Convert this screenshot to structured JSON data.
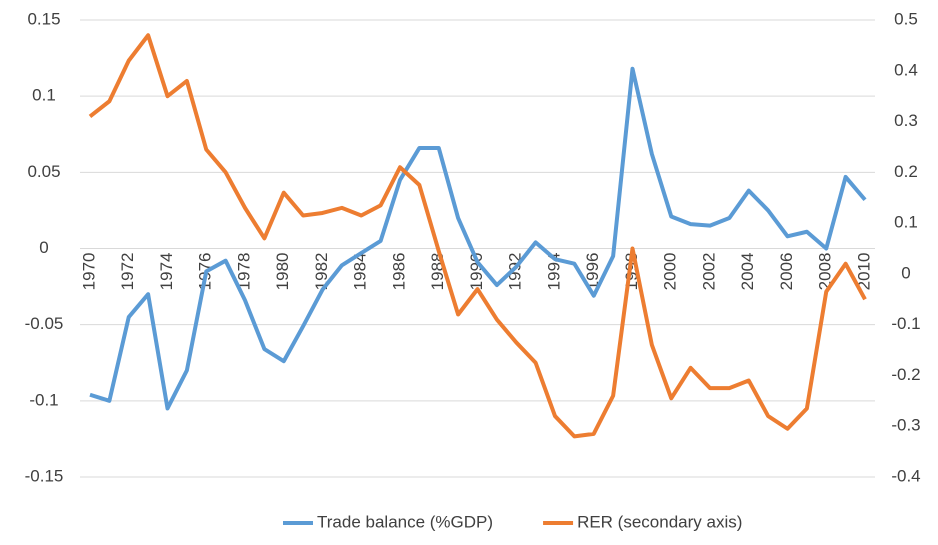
{
  "chart_data": {
    "type": "line",
    "categories": [
      "1970",
      null,
      "1972",
      null,
      "1974",
      null,
      "1976",
      null,
      "1978",
      null,
      "1980",
      null,
      "1982",
      null,
      "1984",
      null,
      "1986",
      null,
      "1988",
      null,
      "1990",
      null,
      "1992",
      null,
      "1994",
      null,
      "1996",
      null,
      "1998",
      null,
      "2000",
      null,
      "2002",
      null,
      "2004",
      null,
      "2006",
      null,
      "2008",
      null,
      "2010"
    ],
    "series": [
      {
        "name": "Trade balance (%GDP)",
        "color": "#5b9bd5",
        "values": [
          -0.096,
          -0.1,
          -0.045,
          -0.03,
          -0.105,
          -0.08,
          -0.015,
          -0.008,
          -0.034,
          -0.066,
          -0.074,
          -0.051,
          -0.027,
          -0.011,
          -0.003,
          0.005,
          0.045,
          0.066,
          0.066,
          0.02,
          -0.009,
          -0.024,
          -0.012,
          0.004,
          -0.007,
          -0.01,
          -0.031,
          -0.005,
          0.118,
          0.062,
          0.021,
          0.016,
          0.015,
          0.02,
          0.038,
          0.025,
          0.008,
          0.011,
          0,
          0.047,
          0.032
        ]
      },
      {
        "name": "RER (secondary axis)",
        "color": "#ed7d31",
        "axis": "y2",
        "values": [
          0.31,
          0.34,
          0.42,
          0.47,
          0.35,
          0.38,
          0.245,
          0.2,
          0.13,
          0.07,
          0.16,
          0.115,
          0.12,
          0.13,
          0.115,
          0.135,
          0.21,
          0.175,
          0.045,
          -0.08,
          -0.03,
          -0.09,
          -0.135,
          -0.175,
          -0.28,
          -0.32,
          -0.315,
          -0.24,
          0.05,
          -0.14,
          -0.245,
          -0.185,
          -0.225,
          -0.225,
          -0.21,
          -0.28,
          -0.305,
          -0.265,
          -0.035,
          0.02,
          -0.05
        ]
      }
    ],
    "ylim": [
      -0.15,
      0.15
    ],
    "yticks": [
      -0.15,
      -0.1,
      -0.05,
      0,
      0.05,
      0.1,
      0.15
    ],
    "y2lim": [
      -0.4,
      0.5
    ],
    "y2ticks": [
      -0.4,
      -0.3,
      -0.2,
      -0.1,
      0,
      0.1,
      0.2,
      0.3,
      0.4,
      0.5
    ],
    "grid": true,
    "legend": "bottom"
  }
}
